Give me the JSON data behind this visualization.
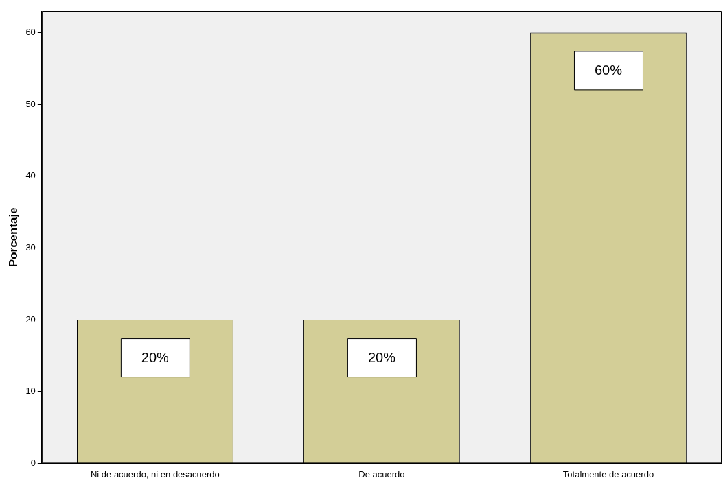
{
  "chart_data": {
    "type": "bar",
    "ylabel": "Porcentaje",
    "categories": [
      "Ni de acuerdo, ni en desacuerdo",
      "De acuerdo",
      "Totalmente de acuerdo"
    ],
    "values": [
      20,
      20,
      60
    ],
    "color": "#d3ce97",
    "value_labels": [
      "20%",
      "20%",
      "60%"
    ],
    "ylim": [
      0,
      63
    ],
    "yticks": [
      0,
      10,
      20,
      30,
      40,
      50,
      60
    ],
    "grid": false,
    "legend": false
  }
}
